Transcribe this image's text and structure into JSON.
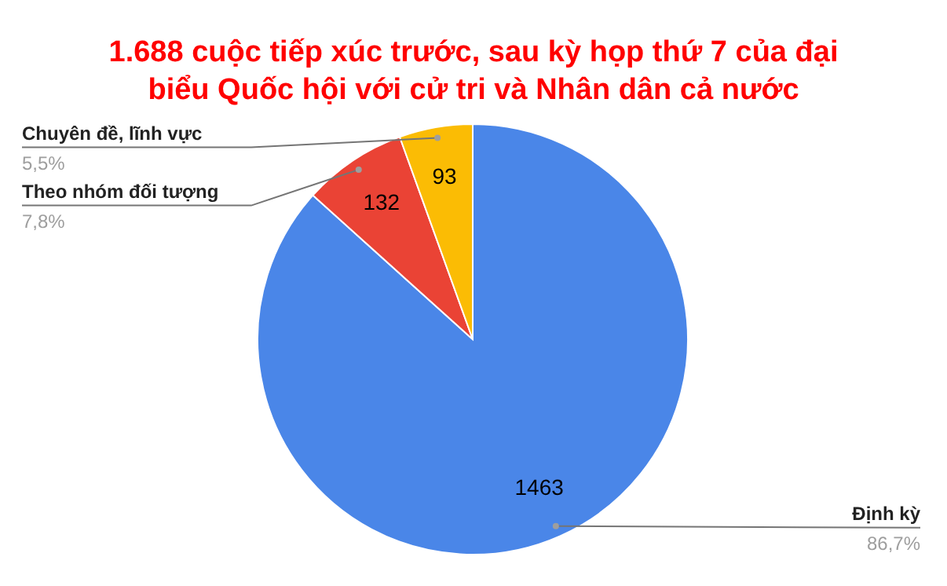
{
  "chart_data": {
    "type": "pie",
    "title": "1.688 cuộc tiếp xúc trước, sau kỳ họp thứ 7 của đại biểu Quốc hội với cử tri và Nhân dân cả nước",
    "categories": [
      "Định kỳ",
      "Theo nhóm đối tượng",
      "Chuyên đề, lĩnh vực"
    ],
    "values": [
      1463,
      132,
      93
    ],
    "colors": [
      "#4a86e8",
      "#ea4335",
      "#fbbc04"
    ],
    "annotations": [
      "86,7%",
      "7,8%",
      "5,5%"
    ],
    "data_labels": true
  }
}
